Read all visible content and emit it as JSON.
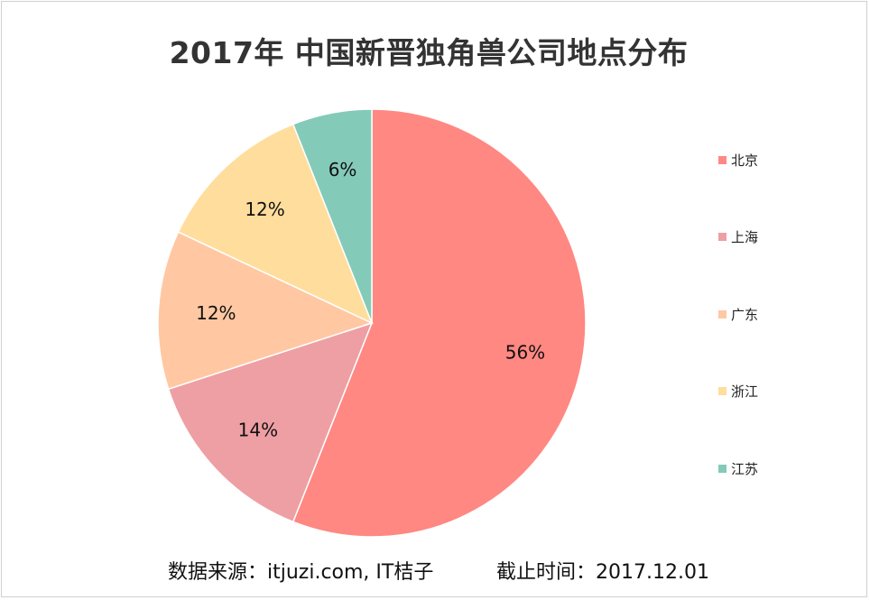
{
  "chart_data": {
    "type": "pie",
    "title": "2017年 中国新晋独角兽公司地点分布",
    "categories": [
      "北京",
      "上海",
      "广东",
      "浙江",
      "江苏"
    ],
    "values": [
      56,
      14,
      12,
      12,
      6
    ],
    "labels": [
      "56%",
      "14%",
      "12%",
      "12%",
      "6%"
    ],
    "colors": [
      "#FF8882",
      "#EE9FA3",
      "#FFC8A2",
      "#FFDD9C",
      "#84CAB9"
    ],
    "legend_position": "right"
  },
  "footer": {
    "source": "数据来源：itjuzi.com, IT桔子",
    "date": "截止时间：2017.12.01"
  }
}
